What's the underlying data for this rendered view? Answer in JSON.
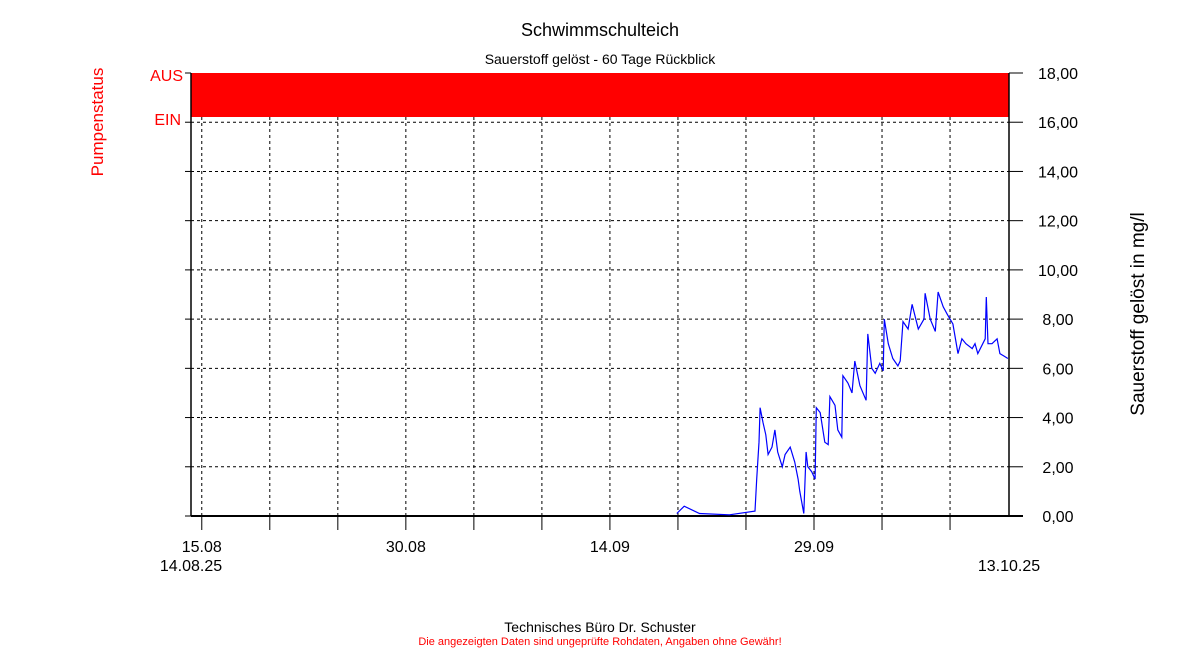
{
  "chart_data": {
    "type": "line",
    "title": "Schwimmschulteich",
    "subtitle": "Sauerstoff gelöst - 60 Tage Rückblick",
    "ylabel": "Sauerstoff gelöst in mg/l",
    "ylim": [
      0,
      18
    ],
    "yticks": [
      "0,00",
      "2,00",
      "4,00",
      "6,00",
      "8,00",
      "10,00",
      "12,00",
      "14,00",
      "16,00",
      "18,00"
    ],
    "xlim": [
      "2025-08-14T05:00",
      "2025-10-13T08:00"
    ],
    "xtick_labels": [
      {
        "date": "2025-08-15T00:00",
        "label": "15.08"
      },
      {
        "date": "2025-08-30T00:00",
        "label": "30.08"
      },
      {
        "date": "2025-09-14T00:00",
        "label": "14.09"
      },
      {
        "date": "2025-09-29T00:00",
        "label": "29.09"
      }
    ],
    "range_start_label": "14.08.25",
    "range_end_label": "13.10.25",
    "grid": true,
    "pump_status": {
      "label": "Pumpenstatus",
      "states": [
        "AUS",
        "EIN"
      ],
      "value": "AUS",
      "color": "#ff0000"
    },
    "series": [
      {
        "color": "#0000ff",
        "points": [
          [
            "2025-09-18T22:00",
            0.1
          ],
          [
            "2025-09-19T11:00",
            0.4
          ],
          [
            "2025-09-20T14:00",
            0.1
          ],
          [
            "2025-09-22T19:00",
            0.05
          ],
          [
            "2025-09-24T16:00",
            0.2
          ],
          [
            "2025-09-24T19:00",
            1.5
          ],
          [
            "2025-09-24T23:00",
            3.0
          ],
          [
            "2025-09-25T01:00",
            4.4
          ],
          [
            "2025-09-25T06:00",
            3.8
          ],
          [
            "2025-09-25T11:00",
            3.3
          ],
          [
            "2025-09-25T15:00",
            2.5
          ],
          [
            "2025-09-25T22:00",
            2.8
          ],
          [
            "2025-09-26T03:00",
            3.5
          ],
          [
            "2025-09-26T08:00",
            2.6
          ],
          [
            "2025-09-26T16:00",
            2.0
          ],
          [
            "2025-09-26T21:00",
            2.5
          ],
          [
            "2025-09-27T06:00",
            2.8
          ],
          [
            "2025-09-27T14:00",
            2.2
          ],
          [
            "2025-09-27T20:00",
            1.5
          ],
          [
            "2025-09-27T23:00",
            1.0
          ],
          [
            "2025-09-28T06:00",
            0.1
          ],
          [
            "2025-09-28T10:00",
            2.6
          ],
          [
            "2025-09-28T13:00",
            2.0
          ],
          [
            "2025-09-28T20:00",
            1.8
          ],
          [
            "2025-09-29T02:00",
            1.5
          ],
          [
            "2025-09-29T04:00",
            4.4
          ],
          [
            "2025-09-29T11:00",
            4.2
          ],
          [
            "2025-09-29T19:00",
            3.0
          ],
          [
            "2025-09-30T01:00",
            2.9
          ],
          [
            "2025-09-30T04:00",
            4.85
          ],
          [
            "2025-09-30T13:00",
            4.5
          ],
          [
            "2025-09-30T18:00",
            3.5
          ],
          [
            "2025-10-01T01:00",
            3.2
          ],
          [
            "2025-10-01T03:00",
            5.7
          ],
          [
            "2025-10-01T12:00",
            5.4
          ],
          [
            "2025-10-01T19:00",
            5.0
          ],
          [
            "2025-10-02T00:00",
            6.3
          ],
          [
            "2025-10-02T09:00",
            5.3
          ],
          [
            "2025-10-02T20:00",
            4.7
          ],
          [
            "2025-10-02T23:00",
            7.4
          ],
          [
            "2025-10-03T06:00",
            6.0
          ],
          [
            "2025-10-03T12:00",
            5.8
          ],
          [
            "2025-10-03T20:00",
            6.2
          ],
          [
            "2025-10-04T02:00",
            5.9
          ],
          [
            "2025-10-04T04:00",
            8.0
          ],
          [
            "2025-10-04T11:00",
            7.0
          ],
          [
            "2025-10-04T19:00",
            6.4
          ],
          [
            "2025-10-05T04:00",
            6.1
          ],
          [
            "2025-10-05T08:00",
            6.3
          ],
          [
            "2025-10-05T13:00",
            7.9
          ],
          [
            "2025-10-05T22:00",
            7.6
          ],
          [
            "2025-10-06T05:00",
            8.6
          ],
          [
            "2025-10-06T16:00",
            7.6
          ],
          [
            "2025-10-07T02:00",
            8.0
          ],
          [
            "2025-10-07T04:00",
            9.05
          ],
          [
            "2025-10-07T13:00",
            8.0
          ],
          [
            "2025-10-07T22:00",
            7.5
          ],
          [
            "2025-10-08T03:00",
            9.1
          ],
          [
            "2025-10-08T12:00",
            8.5
          ],
          [
            "2025-10-08T19:00",
            8.2
          ],
          [
            "2025-10-09T05:00",
            7.8
          ],
          [
            "2025-10-09T14:00",
            6.6
          ],
          [
            "2025-10-09T21:00",
            7.2
          ],
          [
            "2025-10-10T04:00",
            7.0
          ],
          [
            "2025-10-10T15:00",
            6.8
          ],
          [
            "2025-10-10T20:00",
            7.0
          ],
          [
            "2025-10-11T01:00",
            6.6
          ],
          [
            "2025-10-11T14:00",
            7.2
          ],
          [
            "2025-10-11T16:00",
            8.9
          ],
          [
            "2025-10-11T19:00",
            7.0
          ],
          [
            "2025-10-12T02:00",
            7.0
          ],
          [
            "2025-10-12T11:00",
            7.2
          ],
          [
            "2025-10-12T16:00",
            6.6
          ],
          [
            "2025-10-12T23:00",
            6.5
          ],
          [
            "2025-10-13T06:00",
            6.4
          ]
        ]
      }
    ]
  },
  "footer": {
    "company": "Technisches Büro Dr. Schuster",
    "disclaimer": "Die angezeigten Daten sind ungeprüfte Rohdaten, Angaben ohne Gewähr!"
  }
}
